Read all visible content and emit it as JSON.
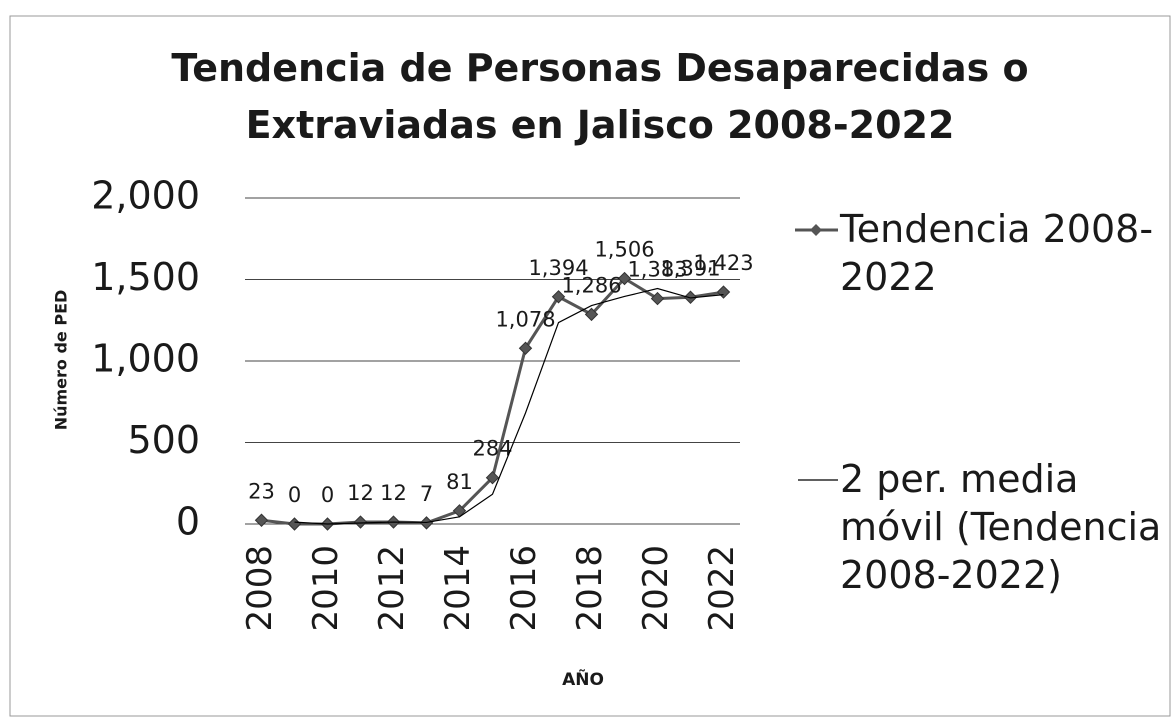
{
  "chart_data": {
    "type": "line",
    "title": "Tendencia de Personas  Desaparecidas o Extraviadas en Jalisco 2008-2022",
    "x_label": "AÑO",
    "y_label": "Número de PED",
    "categories": [
      "2008",
      null,
      "2010",
      null,
      "2012",
      null,
      "2014",
      null,
      "2016",
      null,
      "2018",
      null,
      "2020",
      null,
      "2022"
    ],
    "series": [
      {
        "name": "Tendencia 2008-2022",
        "color": "#555555",
        "marker": "diamond",
        "values": [
          23,
          0,
          0,
          12,
          12,
          7,
          81,
          284,
          1078,
          1394,
          1286,
          1506,
          1383,
          1391,
          1423
        ],
        "value_labels": [
          "23",
          "0",
          "0",
          "12",
          "12",
          "7",
          "81",
          "284",
          "1,078",
          "1,394",
          "1,286",
          "1,506",
          "1,383",
          "1,391",
          "1,423"
        ]
      },
      {
        "name": "2 per. media móvil (Tendencia 2008-2022)",
        "color": "#000000",
        "values": [
          null,
          11.5,
          0,
          6,
          12,
          9.5,
          44,
          182.5,
          681,
          1236,
          1340,
          1396,
          1444.5,
          1387,
          1407
        ]
      }
    ],
    "ylim": [
      0,
      2000
    ],
    "yticks": [
      0,
      500,
      {
        "value": 1000,
        "label": "1,000"
      },
      {
        "value": 1500,
        "label": "1,500"
      },
      {
        "value": 2000,
        "label": "2,000"
      }
    ],
    "grid": true,
    "legend": "right"
  }
}
